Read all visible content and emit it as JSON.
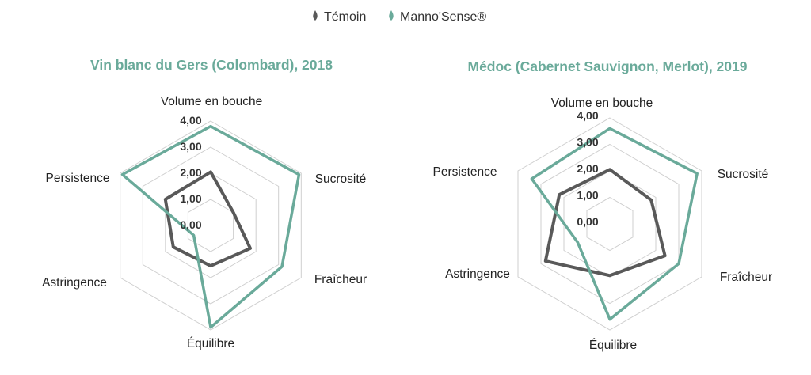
{
  "legend": {
    "items": [
      {
        "name": "Témoin",
        "color": "#595959",
        "icon": "drop-icon"
      },
      {
        "name": "Manno'Sense®",
        "color": "#6aaa9a",
        "icon": "drop-icon"
      }
    ]
  },
  "colors": {
    "title": "#6aaa9a",
    "grid": "#cfcfcf"
  },
  "chart_data": [
    {
      "type": "radar",
      "title": "Vin blanc du Gers (Colombard), 2018",
      "axes": [
        "Volume en bouche",
        "Sucrosité",
        "Fraîcheur",
        "Équilibre",
        "Astringence",
        "Persistence"
      ],
      "ticks": [
        "0,00",
        "1,00",
        "2,00",
        "3,00",
        "4,00"
      ],
      "range": [
        0,
        4
      ],
      "grid": true,
      "series": [
        {
          "name": "Témoin",
          "values": [
            2.05,
            1.0,
            1.75,
            1.55,
            1.65,
            2.0
          ]
        },
        {
          "name": "Manno'Sense®",
          "values": [
            3.8,
            3.9,
            3.15,
            3.9,
            0.75,
            3.9
          ]
        }
      ]
    },
    {
      "type": "radar",
      "title": "Médoc (Cabernet Sauvignon, Merlot), 2019",
      "axes": [
        "Volume en bouche",
        "Sucrosité",
        "Fraîcheur",
        "Équilibre",
        "Astringence",
        "Persistence"
      ],
      "ticks": [
        "0,00",
        "1,00",
        "2,00",
        "3,00",
        "4,00"
      ],
      "range": [
        0,
        4
      ],
      "grid": true,
      "series": [
        {
          "name": "Témoin",
          "values": [
            2.05,
            1.8,
            2.4,
            1.95,
            2.8,
            2.2
          ]
        },
        {
          "name": "Manno'Sense®",
          "values": [
            3.6,
            3.8,
            3.0,
            3.6,
            1.4,
            3.4
          ]
        }
      ]
    }
  ]
}
